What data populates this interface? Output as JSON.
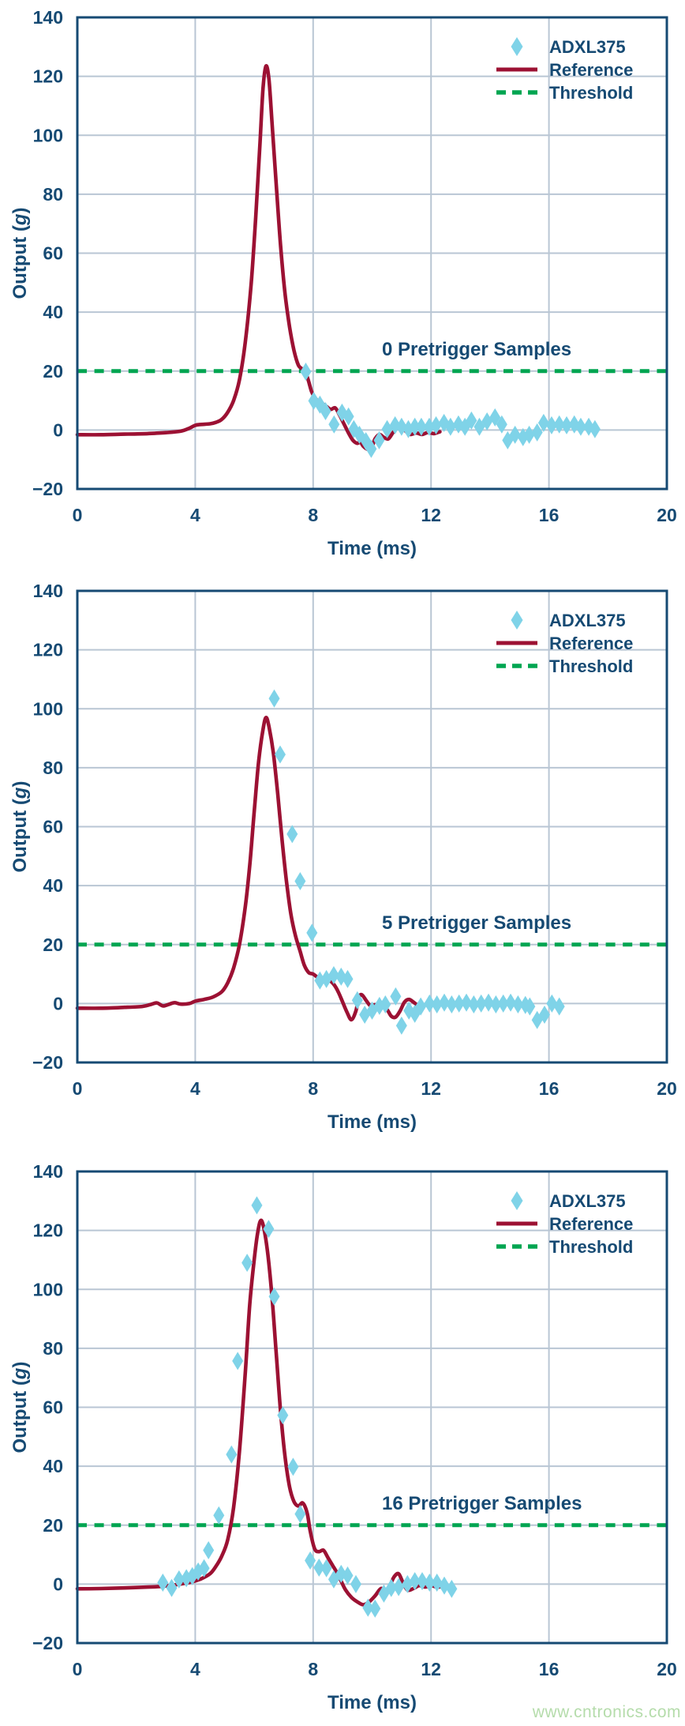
{
  "page": {
    "watermark": "www.cntronics.com"
  },
  "style": {
    "navy": "#164a73",
    "grid": "#b9c6d4",
    "reference_color": "#9c1133",
    "adxl_color": "#7fd3e8",
    "threshold_color": "#00a551",
    "watermark_color": "#b5dcab",
    "background": "#ffffff"
  },
  "axes": {
    "xlabel": "Time (ms)",
    "ylabel_pre": "Output (",
    "ylabel_italic": "g",
    "ylabel_post": ")",
    "xlim": [
      0,
      20
    ],
    "ylim": [
      -20,
      140
    ],
    "x_ticks": [
      {
        "v": 0,
        "label": "0"
      },
      {
        "v": 4,
        "label": "4"
      },
      {
        "v": 8,
        "label": "8"
      },
      {
        "v": 12,
        "label": "12"
      },
      {
        "v": 16,
        "label": "16"
      },
      {
        "v": 20,
        "label": "20"
      }
    ],
    "y_ticks": [
      {
        "v": 140,
        "label": "140"
      },
      {
        "v": 120,
        "label": "120"
      },
      {
        "v": 100,
        "label": "100"
      },
      {
        "v": 80,
        "label": "80"
      },
      {
        "v": 60,
        "label": "60"
      },
      {
        "v": 40,
        "label": "40"
      },
      {
        "v": 20,
        "label": "20"
      },
      {
        "v": 0,
        "label": "0"
      },
      {
        "v": -20,
        "label": "−20"
      }
    ],
    "grid": true
  },
  "legend": {
    "position": "top-right",
    "entries": [
      {
        "marker": "diamond",
        "label": "ADXL375"
      },
      {
        "marker": "line",
        "label": "Reference"
      },
      {
        "marker": "dash",
        "label": "Threshold"
      }
    ]
  },
  "chart_data": [
    {
      "type": "line+scatter",
      "name": "0-pretrigger",
      "annotation": "0 Pretrigger Samples",
      "threshold_g": 20,
      "reference": [
        [
          0,
          -1.6
        ],
        [
          0.8,
          -1.6
        ],
        [
          1.6,
          -1.4
        ],
        [
          2.4,
          -1.2
        ],
        [
          3.0,
          -0.9
        ],
        [
          3.5,
          -0.4
        ],
        [
          3.8,
          0.6
        ],
        [
          4.0,
          1.6
        ],
        [
          4.2,
          1.9
        ],
        [
          4.5,
          2.1
        ],
        [
          4.7,
          2.6
        ],
        [
          4.9,
          3.6
        ],
        [
          5.1,
          6
        ],
        [
          5.3,
          10
        ],
        [
          5.5,
          17
        ],
        [
          5.7,
          30
        ],
        [
          5.9,
          50
        ],
        [
          6.05,
          72
        ],
        [
          6.2,
          98
        ],
        [
          6.3,
          116
        ],
        [
          6.4,
          123.5
        ],
        [
          6.5,
          119
        ],
        [
          6.6,
          105
        ],
        [
          6.75,
          83
        ],
        [
          6.9,
          62
        ],
        [
          7.05,
          46
        ],
        [
          7.2,
          35
        ],
        [
          7.35,
          27
        ],
        [
          7.5,
          22
        ],
        [
          7.65,
          20.5
        ],
        [
          7.8,
          18
        ],
        [
          7.95,
          13
        ],
        [
          8.1,
          10.5
        ],
        [
          8.25,
          9.5
        ],
        [
          8.45,
          8
        ],
        [
          8.6,
          7
        ],
        [
          8.75,
          7.5
        ],
        [
          8.9,
          5
        ],
        [
          9.05,
          2
        ],
        [
          9.2,
          -1
        ],
        [
          9.35,
          -3.5
        ],
        [
          9.5,
          -4.5
        ],
        [
          9.6,
          -4
        ],
        [
          9.7,
          -5.5
        ],
        [
          9.85,
          -6.5
        ],
        [
          10.0,
          -5.5
        ],
        [
          10.1,
          -3
        ],
        [
          10.25,
          -1.5
        ],
        [
          10.4,
          -2.5
        ],
        [
          10.55,
          -3
        ],
        [
          10.7,
          -1
        ],
        [
          10.85,
          0.8
        ],
        [
          11.0,
          1
        ],
        [
          11.15,
          -0.5
        ],
        [
          11.3,
          -1.5
        ],
        [
          11.5,
          -1
        ],
        [
          11.7,
          -1.5
        ],
        [
          11.9,
          -0.8
        ],
        [
          12.1,
          -1.2
        ],
        [
          12.3,
          -0.6
        ]
      ],
      "adxl375": [
        [
          7.75,
          19.8
        ],
        [
          8.02,
          9.9
        ],
        [
          8.23,
          8.6
        ],
        [
          8.42,
          6.4
        ],
        [
          8.71,
          1.9
        ],
        [
          8.98,
          5.9
        ],
        [
          9.2,
          4.6
        ],
        [
          9.38,
          0.3
        ],
        [
          9.57,
          -1.6
        ],
        [
          9.79,
          -3.8
        ],
        [
          9.97,
          -6.4
        ],
        [
          10.24,
          -3.5
        ],
        [
          10.51,
          0.3
        ],
        [
          10.78,
          1.6
        ],
        [
          11.0,
          1.1
        ],
        [
          11.23,
          0.3
        ],
        [
          11.45,
          1.1
        ],
        [
          11.67,
          1.1
        ],
        [
          11.94,
          1.1
        ],
        [
          12.17,
          1.6
        ],
        [
          12.44,
          2.4
        ],
        [
          12.66,
          1.1
        ],
        [
          12.93,
          1.9
        ],
        [
          13.15,
          1.1
        ],
        [
          13.37,
          3.2
        ],
        [
          13.64,
          1.1
        ],
        [
          13.9,
          2.9
        ],
        [
          14.17,
          4.3
        ],
        [
          14.4,
          1.9
        ],
        [
          14.6,
          -3.5
        ],
        [
          14.85,
          -1.6
        ],
        [
          15.12,
          -2.4
        ],
        [
          15.33,
          -1.6
        ],
        [
          15.6,
          -0.8
        ],
        [
          15.82,
          2.4
        ],
        [
          16.09,
          1.6
        ],
        [
          16.35,
          1.9
        ],
        [
          16.6,
          1.6
        ],
        [
          16.86,
          1.9
        ],
        [
          17.08,
          1.1
        ],
        [
          17.35,
          1.1
        ],
        [
          17.56,
          0.3
        ]
      ]
    },
    {
      "type": "line+scatter",
      "name": "5-pretrigger",
      "annotation": "5 Pretrigger Samples",
      "threshold_g": 20,
      "reference": [
        [
          0,
          -1.6
        ],
        [
          0.8,
          -1.6
        ],
        [
          1.6,
          -1.3
        ],
        [
          2.2,
          -1
        ],
        [
          2.5,
          -0.3
        ],
        [
          2.7,
          0.2
        ],
        [
          2.9,
          -0.8
        ],
        [
          3.1,
          -0.3
        ],
        [
          3.3,
          0.3
        ],
        [
          3.5,
          -0.2
        ],
        [
          3.8,
          0
        ],
        [
          4.0,
          0.8
        ],
        [
          4.3,
          1.4
        ],
        [
          4.6,
          2.2
        ],
        [
          4.9,
          4
        ],
        [
          5.1,
          7
        ],
        [
          5.3,
          12
        ],
        [
          5.5,
          20
        ],
        [
          5.7,
          33
        ],
        [
          5.85,
          47
        ],
        [
          6.0,
          65
        ],
        [
          6.15,
          82
        ],
        [
          6.3,
          93
        ],
        [
          6.4,
          97
        ],
        [
          6.5,
          94
        ],
        [
          6.65,
          85
        ],
        [
          6.8,
          71
        ],
        [
          6.95,
          55
        ],
        [
          7.1,
          41
        ],
        [
          7.25,
          30
        ],
        [
          7.4,
          23
        ],
        [
          7.55,
          18
        ],
        [
          7.7,
          13
        ],
        [
          7.85,
          10.5
        ],
        [
          8.0,
          10
        ],
        [
          8.2,
          8.5
        ],
        [
          8.4,
          7.5
        ],
        [
          8.55,
          7.8
        ],
        [
          8.7,
          6.5
        ],
        [
          8.85,
          4
        ],
        [
          9.0,
          0.5
        ],
        [
          9.15,
          -3
        ],
        [
          9.3,
          -5.5
        ],
        [
          9.45,
          -2.5
        ],
        [
          9.55,
          2
        ],
        [
          9.65,
          3
        ],
        [
          9.8,
          1
        ],
        [
          9.95,
          -0.8
        ],
        [
          10.1,
          -0.4
        ],
        [
          10.3,
          -1
        ],
        [
          10.5,
          -2
        ],
        [
          10.65,
          -4.3
        ],
        [
          10.8,
          -4.6
        ],
        [
          10.95,
          -2.5
        ],
        [
          11.1,
          0.5
        ],
        [
          11.25,
          1.4
        ],
        [
          11.4,
          0.5
        ],
        [
          11.55,
          -0.6
        ],
        [
          11.65,
          -0.4
        ]
      ],
      "adxl375": [
        [
          6.68,
          103.5
        ],
        [
          6.88,
          84.5
        ],
        [
          7.29,
          57.5
        ],
        [
          7.56,
          41.5
        ],
        [
          7.96,
          24
        ],
        [
          8.23,
          7.8
        ],
        [
          8.45,
          8.3
        ],
        [
          8.7,
          9.6
        ],
        [
          8.95,
          9.1
        ],
        [
          9.17,
          8.3
        ],
        [
          9.5,
          1.1
        ],
        [
          9.75,
          -3.8
        ],
        [
          10.0,
          -2.4
        ],
        [
          10.25,
          -0.8
        ],
        [
          10.45,
          -0.3
        ],
        [
          10.8,
          2.4
        ],
        [
          11.0,
          -7.5
        ],
        [
          11.25,
          -2.4
        ],
        [
          11.45,
          -3.5
        ],
        [
          11.65,
          -1
        ],
        [
          11.95,
          0
        ],
        [
          12.2,
          -0.3
        ],
        [
          12.45,
          0.3
        ],
        [
          12.7,
          -0.3
        ],
        [
          12.95,
          0
        ],
        [
          13.2,
          0.3
        ],
        [
          13.45,
          -0.3
        ],
        [
          13.7,
          0
        ],
        [
          13.95,
          0.3
        ],
        [
          14.2,
          -0.3
        ],
        [
          14.45,
          0
        ],
        [
          14.7,
          0.3
        ],
        [
          14.95,
          -0.3
        ],
        [
          15.2,
          -0.5
        ],
        [
          15.35,
          -1
        ],
        [
          15.6,
          -5.6
        ],
        [
          15.85,
          -3.8
        ],
        [
          16.1,
          0
        ],
        [
          16.35,
          -1
        ]
      ]
    },
    {
      "type": "line+scatter",
      "name": "16-pretrigger",
      "annotation": "16 Pretrigger Samples",
      "threshold_g": 20,
      "reference": [
        [
          0,
          -1.6
        ],
        [
          0.8,
          -1.5
        ],
        [
          1.6,
          -1.3
        ],
        [
          2.4,
          -1
        ],
        [
          2.8,
          -0.8
        ],
        [
          3.2,
          -0.4
        ],
        [
          3.6,
          0.2
        ],
        [
          3.9,
          0.8
        ],
        [
          4.2,
          1.8
        ],
        [
          4.5,
          3.5
        ],
        [
          4.7,
          6
        ],
        [
          4.9,
          9.5
        ],
        [
          5.1,
          15
        ],
        [
          5.3,
          26
        ],
        [
          5.5,
          45
        ],
        [
          5.7,
          72
        ],
        [
          5.85,
          95
        ],
        [
          6.0,
          110
        ],
        [
          6.1,
          118
        ],
        [
          6.2,
          123
        ],
        [
          6.3,
          122
        ],
        [
          6.45,
          113
        ],
        [
          6.6,
          98
        ],
        [
          6.75,
          78
        ],
        [
          6.9,
          58
        ],
        [
          7.05,
          43
        ],
        [
          7.2,
          33
        ],
        [
          7.35,
          28
        ],
        [
          7.5,
          26.5
        ],
        [
          7.65,
          27.5
        ],
        [
          7.8,
          24
        ],
        [
          7.9,
          18
        ],
        [
          8.05,
          12
        ],
        [
          8.2,
          11
        ],
        [
          8.35,
          11.5
        ],
        [
          8.5,
          9
        ],
        [
          8.65,
          6.5
        ],
        [
          8.8,
          4
        ],
        [
          8.95,
          1
        ],
        [
          9.1,
          -2
        ],
        [
          9.3,
          -4.5
        ],
        [
          9.5,
          -6
        ],
        [
          9.7,
          -7
        ],
        [
          9.9,
          -6
        ],
        [
          10.1,
          -4
        ],
        [
          10.3,
          -1.5
        ],
        [
          10.45,
          -2.5
        ],
        [
          10.6,
          -0.5
        ],
        [
          10.75,
          2.5
        ],
        [
          10.9,
          3.5
        ],
        [
          11.05,
          0.5
        ],
        [
          11.2,
          -2
        ],
        [
          11.4,
          -1.5
        ],
        [
          11.6,
          -0.5
        ],
        [
          11.8,
          -1
        ],
        [
          12.0,
          -0.5
        ],
        [
          12.2,
          -1
        ],
        [
          12.4,
          -0.8
        ]
      ],
      "adxl375": [
        [
          2.9,
          0.5
        ],
        [
          3.2,
          -1.3
        ],
        [
          3.45,
          1.6
        ],
        [
          3.7,
          2
        ],
        [
          3.9,
          2.7
        ],
        [
          4.1,
          4.3
        ],
        [
          4.3,
          5.4
        ],
        [
          4.45,
          11.5
        ],
        [
          4.8,
          23.3
        ],
        [
          5.23,
          44
        ],
        [
          5.44,
          75.7
        ],
        [
          5.76,
          109
        ],
        [
          6.09,
          128.5
        ],
        [
          6.49,
          120.5
        ],
        [
          6.68,
          97.6
        ],
        [
          6.97,
          57.3
        ],
        [
          7.32,
          39.8
        ],
        [
          7.56,
          23.8
        ],
        [
          7.9,
          8
        ],
        [
          8.2,
          5.6
        ],
        [
          8.45,
          5.4
        ],
        [
          8.7,
          1.6
        ],
        [
          8.95,
          3.5
        ],
        [
          9.17,
          2.9
        ],
        [
          9.45,
          0
        ],
        [
          9.86,
          -8
        ],
        [
          10.1,
          -8.3
        ],
        [
          10.4,
          -3.2
        ],
        [
          10.65,
          -1.3
        ],
        [
          10.9,
          -1
        ],
        [
          11.2,
          0
        ],
        [
          11.45,
          1
        ],
        [
          11.7,
          1
        ],
        [
          11.95,
          0.5
        ],
        [
          12.2,
          0.5
        ],
        [
          12.45,
          -0.5
        ],
        [
          12.7,
          -1.6
        ]
      ]
    }
  ]
}
